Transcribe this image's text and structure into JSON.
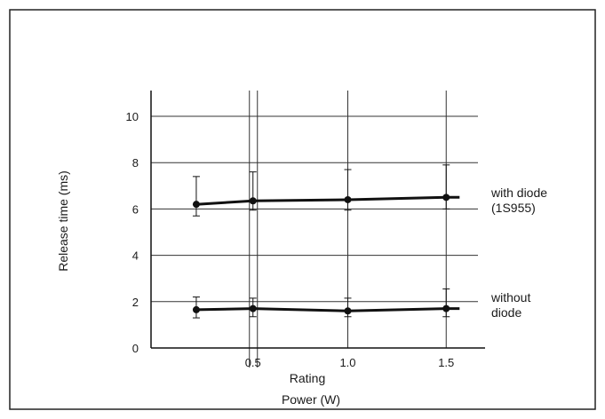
{
  "chart_data": {
    "type": "line",
    "title": "",
    "xlabel": "Power (W)",
    "x_sublabel": "Rating",
    "ylabel": "Release time (ms)",
    "xlim": [
      0,
      1.6
    ],
    "ylim": [
      0,
      11
    ],
    "x_ticks": [
      0.5,
      1.0,
      1.5
    ],
    "x_tick_labels": [
      "0.5",
      "1.0",
      "1.5"
    ],
    "y_ticks": [
      0,
      2,
      4,
      6,
      8,
      10
    ],
    "y_tick_labels": [
      "0",
      "2",
      "4",
      "6",
      "8",
      "10"
    ],
    "grid": true,
    "series": [
      {
        "label_lines": [
          "with diode",
          "(1S955)"
        ],
        "x": [
          0.23,
          0.5,
          1.0,
          1.5
        ],
        "y": [
          6.2,
          6.35,
          6.4,
          6.5
        ],
        "err_high": [
          7.4,
          7.6,
          7.7,
          7.9
        ],
        "err_low": [
          5.7,
          5.95,
          5.95,
          6.0
        ]
      },
      {
        "label_lines": [
          "without",
          "diode"
        ],
        "x": [
          0.23,
          0.5,
          1.0,
          1.5
        ],
        "y": [
          1.65,
          1.7,
          1.6,
          1.7
        ],
        "err_high": [
          2.2,
          2.15,
          2.15,
          2.55
        ],
        "err_low": [
          1.3,
          1.35,
          1.35,
          1.35
        ]
      }
    ]
  }
}
